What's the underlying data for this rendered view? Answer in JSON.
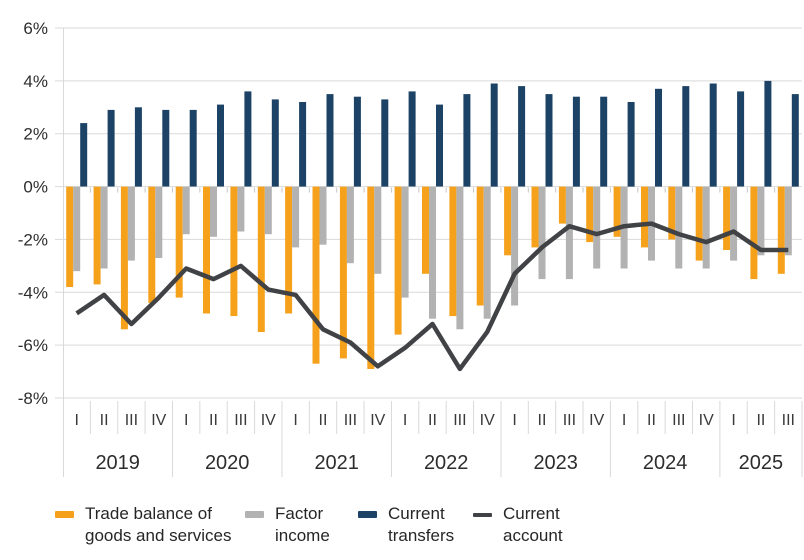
{
  "chart_data": {
    "type": "combo",
    "title": "",
    "xlabel": "",
    "ylabel": "",
    "y_axis": {
      "unit": "%",
      "ylim": [
        -8,
        6
      ],
      "tick_labels": [
        "6%",
        "4%",
        "2%",
        "0%",
        "-2%",
        "-4%",
        "-6%",
        "-8%"
      ],
      "tick_values": [
        6,
        4,
        2,
        0,
        -2,
        -4,
        -6,
        -8
      ],
      "grid": true
    },
    "x_axis": {
      "years": [
        {
          "label": "2019",
          "quarters": [
            "I",
            "II",
            "III",
            "IV"
          ]
        },
        {
          "label": "2020",
          "quarters": [
            "I",
            "II",
            "III",
            "IV"
          ]
        },
        {
          "label": "2021",
          "quarters": [
            "I",
            "II",
            "III",
            "IV"
          ]
        },
        {
          "label": "2022",
          "quarters": [
            "I",
            "II",
            "III",
            "IV"
          ]
        },
        {
          "label": "2023",
          "quarters": [
            "I",
            "II",
            "III",
            "IV"
          ]
        },
        {
          "label": "2024",
          "quarters": [
            "I",
            "II",
            "III",
            "IV"
          ]
        },
        {
          "label": "2025",
          "quarters": [
            "I",
            "II",
            "III"
          ]
        }
      ]
    },
    "categories": [
      "2019 I",
      "2019 II",
      "2019 III",
      "2019 IV",
      "2020 I",
      "2020 II",
      "2020 III",
      "2020 IV",
      "2021 I",
      "2021 II",
      "2021 III",
      "2021 IV",
      "2022 I",
      "2022 II",
      "2022 III",
      "2022 IV",
      "2023 I",
      "2023 II",
      "2023 III",
      "2023 IV",
      "2024 I",
      "2024 II",
      "2024 III",
      "2024 IV",
      "2025 I",
      "2025 II",
      "2025 III"
    ],
    "legend_position": "bottom",
    "series": [
      {
        "name": "Trade balance of\ngoods and services",
        "type": "bar",
        "color": "#F5A11C",
        "values": [
          -3.8,
          -3.7,
          -5.4,
          -4.4,
          -4.2,
          -4.8,
          -4.9,
          -5.5,
          -4.8,
          -6.7,
          -6.5,
          -6.9,
          -5.6,
          -3.3,
          -4.9,
          -4.5,
          -2.6,
          -2.3,
          -1.4,
          -2.1,
          -1.9,
          -2.3,
          -2.0,
          -2.8,
          -2.4,
          -3.5,
          -3.3
        ]
      },
      {
        "name": "Factor\nincome",
        "type": "bar",
        "color": "#B2B2B2",
        "values": [
          -3.2,
          -3.1,
          -2.8,
          -2.7,
          -1.8,
          -1.9,
          -1.7,
          -1.8,
          -2.3,
          -2.2,
          -2.9,
          -3.3,
          -4.2,
          -5.0,
          -5.4,
          -5.0,
          -4.5,
          -3.5,
          -3.5,
          -3.1,
          -3.1,
          -2.8,
          -3.1,
          -3.1,
          -2.8,
          -2.6,
          -2.6
        ]
      },
      {
        "name": "Current\ntransfers",
        "type": "bar",
        "color": "#1C4365",
        "values": [
          2.4,
          2.9,
          3.0,
          2.9,
          2.9,
          3.1,
          3.6,
          3.3,
          3.2,
          3.5,
          3.4,
          3.3,
          3.6,
          3.1,
          3.5,
          3.9,
          3.8,
          3.5,
          3.4,
          3.4,
          3.2,
          3.7,
          3.8,
          3.9,
          3.6,
          4.0,
          3.5
        ]
      },
      {
        "name": "Current\naccount",
        "type": "line",
        "color": "#404245",
        "values": [
          -4.8,
          -4.1,
          -5.2,
          -4.2,
          -3.1,
          -3.5,
          -3.0,
          -3.9,
          -4.1,
          -5.4,
          -5.9,
          -6.8,
          -6.1,
          -5.2,
          -6.9,
          -5.5,
          -3.3,
          -2.3,
          -1.5,
          -1.8,
          -1.5,
          -1.4,
          -1.8,
          -2.1,
          -1.7,
          -2.4,
          -2.4
        ]
      }
    ]
  },
  "colors": {
    "grid": "#D9D9D9",
    "separator": "#D9D9D9",
    "zero_tick": "#C6C6C6",
    "background": "#FFFFFF"
  }
}
